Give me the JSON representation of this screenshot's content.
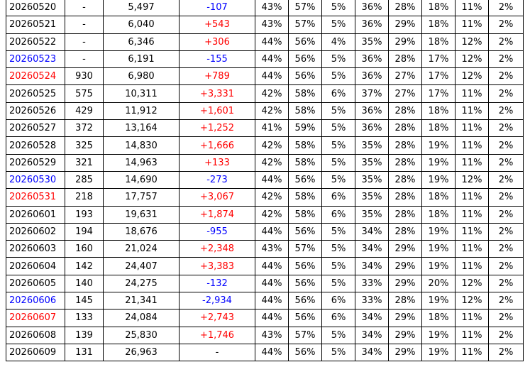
{
  "colors": {
    "red": "#ff0000",
    "blue": "#0000ff",
    "black": "#000000"
  },
  "rows": [
    {
      "date": "20260520",
      "date_color": "black",
      "v1": "-",
      "v2": "5,497",
      "change": "-107",
      "change_color": "blue",
      "p1": "43%",
      "p2": "57%",
      "p3": "5%",
      "p4": "36%",
      "p5": "28%",
      "p6": "18%",
      "p7": "11%",
      "p8": "2%"
    },
    {
      "date": "20260521",
      "date_color": "black",
      "v1": "-",
      "v2": "6,040",
      "change": "+543",
      "change_color": "red",
      "p1": "43%",
      "p2": "57%",
      "p3": "5%",
      "p4": "36%",
      "p5": "29%",
      "p6": "18%",
      "p7": "11%",
      "p8": "2%"
    },
    {
      "date": "20260522",
      "date_color": "black",
      "v1": "-",
      "v2": "6,346",
      "change": "+306",
      "change_color": "red",
      "p1": "44%",
      "p2": "56%",
      "p3": "4%",
      "p4": "35%",
      "p5": "29%",
      "p6": "18%",
      "p7": "12%",
      "p8": "2%"
    },
    {
      "date": "20260523",
      "date_color": "blue",
      "v1": "-",
      "v2": "6,191",
      "change": "-155",
      "change_color": "blue",
      "p1": "44%",
      "p2": "56%",
      "p3": "5%",
      "p4": "36%",
      "p5": "28%",
      "p6": "17%",
      "p7": "12%",
      "p8": "2%"
    },
    {
      "date": "20260524",
      "date_color": "red",
      "v1": "930",
      "v2": "6,980",
      "change": "+789",
      "change_color": "red",
      "p1": "44%",
      "p2": "56%",
      "p3": "5%",
      "p4": "36%",
      "p5": "27%",
      "p6": "17%",
      "p7": "12%",
      "p8": "2%"
    },
    {
      "date": "20260525",
      "date_color": "black",
      "v1": "575",
      "v2": "10,311",
      "change": "+3,331",
      "change_color": "red",
      "p1": "42%",
      "p2": "58%",
      "p3": "6%",
      "p4": "37%",
      "p5": "27%",
      "p6": "17%",
      "p7": "11%",
      "p8": "2%"
    },
    {
      "date": "20260526",
      "date_color": "black",
      "v1": "429",
      "v2": "11,912",
      "change": "+1,601",
      "change_color": "red",
      "p1": "42%",
      "p2": "58%",
      "p3": "5%",
      "p4": "36%",
      "p5": "28%",
      "p6": "18%",
      "p7": "11%",
      "p8": "2%"
    },
    {
      "date": "20260527",
      "date_color": "black",
      "v1": "372",
      "v2": "13,164",
      "change": "+1,252",
      "change_color": "red",
      "p1": "41%",
      "p2": "59%",
      "p3": "5%",
      "p4": "36%",
      "p5": "28%",
      "p6": "18%",
      "p7": "11%",
      "p8": "2%"
    },
    {
      "date": "20260528",
      "date_color": "black",
      "v1": "325",
      "v2": "14,830",
      "change": "+1,666",
      "change_color": "red",
      "p1": "42%",
      "p2": "58%",
      "p3": "5%",
      "p4": "35%",
      "p5": "28%",
      "p6": "19%",
      "p7": "11%",
      "p8": "2%"
    },
    {
      "date": "20260529",
      "date_color": "black",
      "v1": "321",
      "v2": "14,963",
      "change": "+133",
      "change_color": "red",
      "p1": "42%",
      "p2": "58%",
      "p3": "5%",
      "p4": "35%",
      "p5": "28%",
      "p6": "19%",
      "p7": "11%",
      "p8": "2%"
    },
    {
      "date": "20260530",
      "date_color": "blue",
      "v1": "285",
      "v2": "14,690",
      "change": "-273",
      "change_color": "blue",
      "p1": "44%",
      "p2": "56%",
      "p3": "5%",
      "p4": "35%",
      "p5": "28%",
      "p6": "19%",
      "p7": "12%",
      "p8": "2%"
    },
    {
      "date": "20260531",
      "date_color": "red",
      "v1": "218",
      "v2": "17,757",
      "change": "+3,067",
      "change_color": "red",
      "p1": "42%",
      "p2": "58%",
      "p3": "6%",
      "p4": "35%",
      "p5": "28%",
      "p6": "18%",
      "p7": "11%",
      "p8": "2%"
    },
    {
      "date": "20260601",
      "date_color": "black",
      "v1": "193",
      "v2": "19,631",
      "change": "+1,874",
      "change_color": "red",
      "p1": "42%",
      "p2": "58%",
      "p3": "6%",
      "p4": "35%",
      "p5": "28%",
      "p6": "18%",
      "p7": "11%",
      "p8": "2%"
    },
    {
      "date": "20260602",
      "date_color": "black",
      "v1": "194",
      "v2": "18,676",
      "change": "-955",
      "change_color": "blue",
      "p1": "44%",
      "p2": "56%",
      "p3": "5%",
      "p4": "34%",
      "p5": "28%",
      "p6": "19%",
      "p7": "11%",
      "p8": "2%"
    },
    {
      "date": "20260603",
      "date_color": "black",
      "v1": "160",
      "v2": "21,024",
      "change": "+2,348",
      "change_color": "red",
      "p1": "43%",
      "p2": "57%",
      "p3": "5%",
      "p4": "34%",
      "p5": "29%",
      "p6": "19%",
      "p7": "11%",
      "p8": "2%"
    },
    {
      "date": "20260604",
      "date_color": "black",
      "v1": "142",
      "v2": "24,407",
      "change": "+3,383",
      "change_color": "red",
      "p1": "44%",
      "p2": "56%",
      "p3": "5%",
      "p4": "34%",
      "p5": "29%",
      "p6": "19%",
      "p7": "11%",
      "p8": "2%"
    },
    {
      "date": "20260605",
      "date_color": "black",
      "v1": "140",
      "v2": "24,275",
      "change": "-132",
      "change_color": "blue",
      "p1": "44%",
      "p2": "56%",
      "p3": "5%",
      "p4": "33%",
      "p5": "29%",
      "p6": "20%",
      "p7": "12%",
      "p8": "2%"
    },
    {
      "date": "20260606",
      "date_color": "blue",
      "v1": "145",
      "v2": "21,341",
      "change": "-2,934",
      "change_color": "blue",
      "p1": "44%",
      "p2": "56%",
      "p3": "6%",
      "p4": "33%",
      "p5": "28%",
      "p6": "19%",
      "p7": "12%",
      "p8": "2%"
    },
    {
      "date": "20260607",
      "date_color": "red",
      "v1": "133",
      "v2": "24,084",
      "change": "+2,743",
      "change_color": "red",
      "p1": "44%",
      "p2": "56%",
      "p3": "6%",
      "p4": "34%",
      "p5": "29%",
      "p6": "18%",
      "p7": "11%",
      "p8": "2%"
    },
    {
      "date": "20260608",
      "date_color": "black",
      "v1": "139",
      "v2": "25,830",
      "change": "+1,746",
      "change_color": "red",
      "p1": "43%",
      "p2": "57%",
      "p3": "5%",
      "p4": "34%",
      "p5": "29%",
      "p6": "19%",
      "p7": "11%",
      "p8": "2%"
    },
    {
      "date": "20260609",
      "date_color": "black",
      "v1": "131",
      "v2": "26,963",
      "change": "-",
      "change_color": "black",
      "p1": "44%",
      "p2": "56%",
      "p3": "5%",
      "p4": "34%",
      "p5": "29%",
      "p6": "19%",
      "p7": "11%",
      "p8": "2%"
    }
  ]
}
